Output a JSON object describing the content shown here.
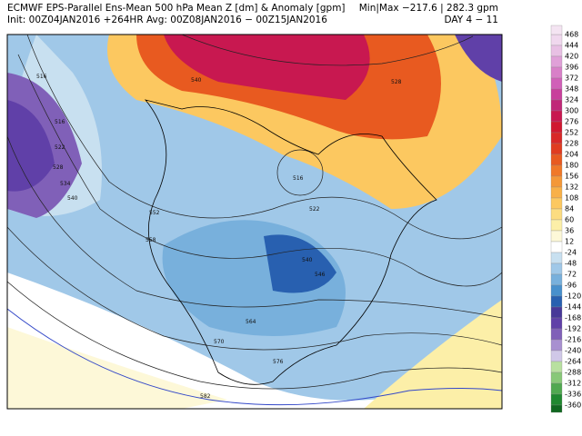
{
  "header": {
    "title": "ECMWF EPS-Parallel Ens-Mean 500 hPa Mean Z [dm] & Anomaly [gpm]",
    "minmax": "Min|Max −217.6 | 282.3 gpm",
    "init": "Init: 00Z04JAN2016 +264HR   Avg: 00Z08JAN2016 − 00Z15JAN2016",
    "day": "DAY 4 − 11"
  },
  "colorbar": {
    "labels": [
      "468",
      "444",
      "420",
      "396",
      "372",
      "348",
      "324",
      "300",
      "276",
      "252",
      "228",
      "204",
      "180",
      "156",
      "132",
      "108",
      "84",
      "60",
      "36",
      "12",
      "-24",
      "-48",
      "-72",
      "-96",
      "-120",
      "-144",
      "-168",
      "-192",
      "-216",
      "-240",
      "-264",
      "-288",
      "-312",
      "-336",
      "-360"
    ],
    "colors": [
      "#f0d8ee",
      "#e8c0e4",
      "#e0a0d8",
      "#d880c8",
      "#d060b8",
      "#c8409c",
      "#c02878",
      "#c81850",
      "#d01830",
      "#d82828",
      "#e03c20",
      "#e85a20",
      "#f07828",
      "#f49838",
      "#f8b048",
      "#fcc860",
      "#fcdc80",
      "#fcefa8",
      "#fdf8d8",
      "#ffffff",
      "#c8e0f0",
      "#a0c8e8",
      "#78b0dc",
      "#4890cc",
      "#2860b0",
      "#483898",
      "#6040a8",
      "#8060b8",
      "#a890d0",
      "#d0c8e8",
      "#b8e0a0",
      "#88c878",
      "#50a850",
      "#208830"
    ]
  },
  "contour_labels": [
    "516",
    "540",
    "528",
    "516",
    "522",
    "528",
    "534",
    "540",
    "552",
    "558",
    "516",
    "522",
    "540",
    "546",
    "564",
    "570",
    "576",
    "582"
  ]
}
